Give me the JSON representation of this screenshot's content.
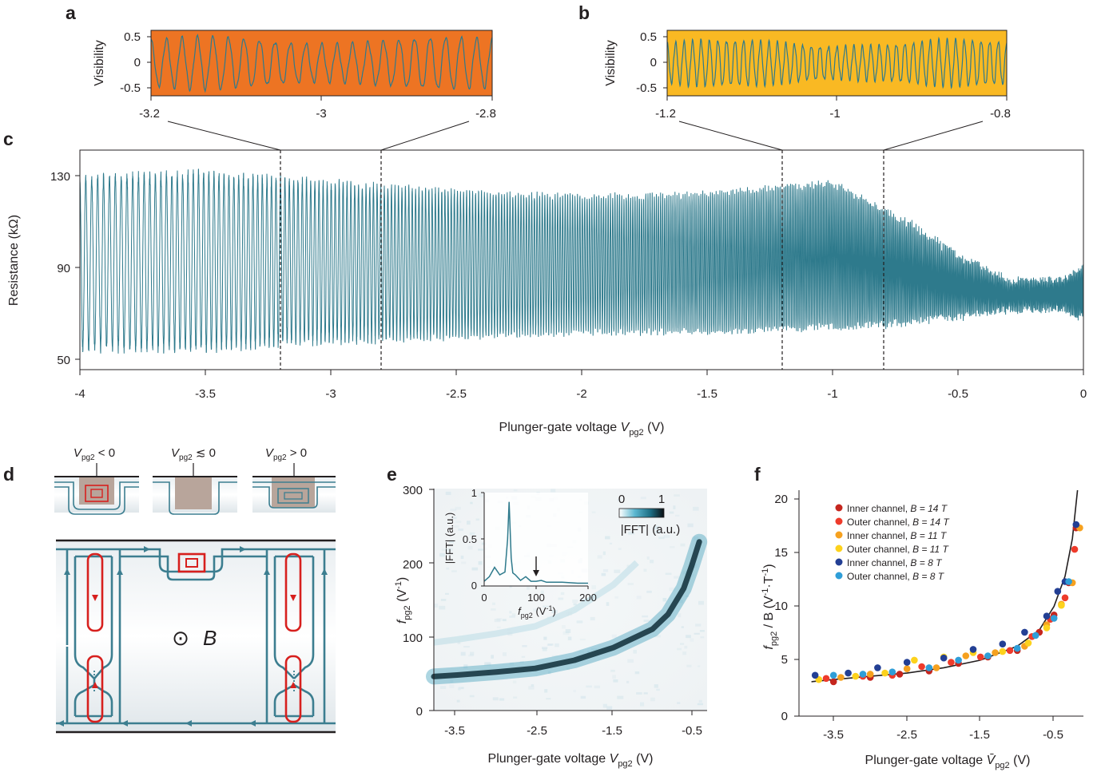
{
  "panels": {
    "a": "a",
    "b": "b",
    "c": "c",
    "d": "d",
    "e": "e",
    "f": "f"
  },
  "colors": {
    "trace": "#2e7a8c",
    "panel_a_bg": "#ed7423",
    "panel_b_bg": "#f9b923",
    "red_channel": "#d7201e",
    "channel": "#3c7e90"
  },
  "panel_a": {
    "ylabel": "Visibility",
    "yticks": [
      "0.5",
      "0",
      "-0.5"
    ],
    "xticks": [
      "-3.2",
      "-3",
      "-2.8"
    ]
  },
  "panel_b": {
    "ylabel": "Visibility",
    "yticks": [
      "0.5",
      "0",
      "-0.5"
    ],
    "xticks": [
      "-1.2",
      "-1",
      "-0.8"
    ]
  },
  "panel_c": {
    "ylabel": "Resistance (kΩ)",
    "yticks": [
      "130",
      "90",
      "50"
    ],
    "xticks": [
      "-4",
      "-3.5",
      "-3",
      "-2.5",
      "-2",
      "-1.5",
      "-1",
      "-0.5",
      "0"
    ],
    "xlabel_main": "Plunger-gate voltage ",
    "xlabel_var": "V",
    "xlabel_sub": "pg2",
    "xlabel_unit": " (V)"
  },
  "panel_d": {
    "top_labels": [
      {
        "var": "V",
        "sub": "pg2",
        "rel": " < 0"
      },
      {
        "var": "V",
        "sub": "pg2",
        "rel": " ≲ 0"
      },
      {
        "var": "V",
        "sub": "pg2",
        "rel": " > 0"
      }
    ],
    "field_label": "B",
    "field_symbol": "⊙"
  },
  "panel_e": {
    "ylabel_var": "f",
    "ylabel_sub": "pg2",
    "ylabel_unit": " (V",
    "ylabel_exp": "-1",
    "ylabel_close": ")",
    "yticks": [
      "300",
      "200",
      "100",
      "0"
    ],
    "xticks": [
      "-3.5",
      "-2.5",
      "-1.5",
      "-0.5"
    ],
    "xlabel_main": "Plunger-gate voltage ",
    "xlabel_var": "V",
    "xlabel_sub": "pg2",
    "xlabel_unit": " (V)",
    "colorbar_ticks": [
      "0",
      "1"
    ],
    "colorbar_label": "|FFT| (a.u.)",
    "inset": {
      "ylabel": "|FFT| (a.u.)",
      "yticks": [
        "1",
        "0.5",
        "0"
      ],
      "xticks": [
        "0",
        "100",
        "200"
      ],
      "xlabel_var": "f",
      "xlabel_sub": "pg2",
      "xlabel_unit": " (V",
      "xlabel_exp": "-1",
      "xlabel_close": ")"
    }
  },
  "panel_f": {
    "ylabel_var": "f",
    "ylabel_sub": "pg2",
    "ylabel_mid": " / B (V",
    "ylabel_exp1": "-1",
    "ylabel_dot": "·T",
    "ylabel_exp2": "-1",
    "ylabel_close": ")",
    "yticks": [
      "20",
      "15",
      "10",
      "5",
      "0"
    ],
    "xticks": [
      "-3.5",
      "-2.5",
      "-1.5",
      "-0.5"
    ],
    "xlabel_main": "Plunger-gate voltage ",
    "xlabel_var": "V̄",
    "xlabel_sub": "pg2",
    "xlabel_unit": " (V)",
    "legend": [
      {
        "name": "Inner channel, ",
        "field": "B = 14 T",
        "color": "#c5261e"
      },
      {
        "name": "Outer channel, ",
        "field": "B = 14 T",
        "color": "#ee3b2b"
      },
      {
        "name": "Inner channel, ",
        "field": "B = 11 T",
        "color": "#f6a11f"
      },
      {
        "name": "Outer channel, ",
        "field": "B = 11 T",
        "color": "#fdd21c"
      },
      {
        "name": "Inner channel, ",
        "field": "B = 8 T",
        "color": "#233f94"
      },
      {
        "name": "Outer channel, ",
        "field": "B = 8 T",
        "color": "#2f9ed8"
      }
    ]
  },
  "chart_data": [
    {
      "type": "line",
      "panel": "a",
      "ylabel": "Visibility",
      "xlim": [
        -3.2,
        -2.8
      ],
      "ylim": [
        -0.6,
        0.6
      ],
      "oscillations": 22,
      "amplitude": 0.45
    },
    {
      "type": "line",
      "panel": "b",
      "ylabel": "Visibility",
      "xlim": [
        -1.2,
        -0.8
      ],
      "ylim": [
        -0.6,
        0.6
      ],
      "oscillations": 40,
      "amplitude": 0.4
    },
    {
      "type": "line",
      "panel": "c",
      "xlabel": "Plunger-gate voltage Vpg2 (V)",
      "ylabel": "Resistance (kΩ)",
      "xlim": [
        -4,
        0
      ],
      "ylim": [
        46,
        140
      ],
      "envelope": {
        "x": [
          -4.0,
          -3.5,
          -3.0,
          -2.5,
          -2.0,
          -1.5,
          -1.0,
          -0.75,
          -0.5,
          -0.3,
          -0.1,
          0.0
        ],
        "max": [
          128,
          130,
          126,
          122,
          120,
          121,
          126,
          112,
          95,
          84,
          84,
          90
        ],
        "min": [
          55,
          55,
          58,
          60,
          62,
          62,
          64,
          66,
          69,
          72,
          72,
          68
        ]
      },
      "oscillation_frequency_start": 42,
      "oscillation_frequency_end": 230,
      "dashed_markers_x": [
        -3.2,
        -2.8,
        -1.2,
        -0.8
      ]
    },
    {
      "type": "heatmap",
      "panel": "e",
      "xlabel": "Plunger-gate voltage Vpg2 (V)",
      "ylabel": "fpg2 (V-1)",
      "xlim": [
        -3.8,
        -0.3
      ],
      "ylim": [
        0,
        300
      ],
      "ridge": {
        "x": [
          -3.8,
          -3.5,
          -3.0,
          -2.5,
          -2.0,
          -1.5,
          -1.2,
          -1.0,
          -0.8,
          -0.6,
          -0.5,
          -0.4
        ],
        "f": [
          46,
          48,
          52,
          57,
          68,
          85,
          100,
          110,
          130,
          165,
          195,
          228
        ]
      },
      "colorbar": {
        "min": 0,
        "max": 1,
        "label": "|FFT| (a.u.)"
      }
    },
    {
      "type": "line",
      "panel": "e-inset",
      "xlabel": "fpg2 (V-1)",
      "ylabel": "|FFT| (a.u.)",
      "xlim": [
        0,
        200
      ],
      "ylim": [
        0,
        1
      ],
      "x": [
        0,
        10,
        20,
        30,
        40,
        45,
        48,
        50,
        52,
        55,
        60,
        70,
        80,
        90,
        100,
        110,
        120,
        150,
        180,
        200
      ],
      "y": [
        0.05,
        0.1,
        0.2,
        0.12,
        0.15,
        0.5,
        0.9,
        0.6,
        0.3,
        0.14,
        0.12,
        0.06,
        0.1,
        0.05,
        0.05,
        0.06,
        0.04,
        0.04,
        0.03,
        0.03
      ],
      "arrow_at_x": 100
    },
    {
      "type": "scatter",
      "panel": "f",
      "xlabel": "Plunger-gate voltage V̄pg2 (V)",
      "ylabel": "fpg2 / B (V-1·T-1)",
      "xlim": [
        -3.8,
        0
      ],
      "ylim": [
        0,
        21
      ],
      "fit": {
        "x": [
          -3.8,
          -3.5,
          -3.0,
          -2.5,
          -2.0,
          -1.5,
          -1.0,
          -0.7,
          -0.5,
          -0.35,
          -0.25,
          -0.18
        ],
        "y": [
          3.2,
          3.4,
          3.7,
          4.0,
          4.5,
          5.2,
          6.5,
          8.0,
          10.2,
          13.0,
          16.5,
          21.0
        ]
      },
      "series": [
        {
          "name": "Inner channel, B = 14 T",
          "x": [
            -3.5,
            -3.0,
            -2.6,
            -2.2,
            -1.8,
            -1.4,
            -1.0,
            -0.7,
            -0.5,
            -0.3,
            -0.2
          ],
          "y": [
            3.2,
            3.6,
            3.9,
            4.2,
            4.9,
            5.5,
            6.1,
            7.8,
            9.4,
            12.4,
            17.5
          ]
        },
        {
          "name": "Outer channel, B = 14 T",
          "x": [
            -3.6,
            -3.1,
            -2.7,
            -2.3,
            -1.9,
            -1.5,
            -1.1,
            -0.8,
            -0.55,
            -0.35,
            -0.22
          ],
          "y": [
            3.5,
            3.7,
            3.8,
            4.6,
            5.0,
            5.5,
            6.1,
            7.4,
            9.0,
            11.0,
            15.5
          ]
        },
        {
          "name": "Inner channel, B = 11 T",
          "x": [
            -3.4,
            -3.0,
            -2.5,
            -2.1,
            -1.7,
            -1.3,
            -0.9,
            -0.6,
            -0.4,
            -0.25,
            -0.15
          ],
          "y": [
            3.6,
            3.9,
            4.4,
            4.5,
            5.6,
            5.9,
            6.5,
            8.5,
            10.4,
            12.4,
            17.5
          ]
        },
        {
          "name": "Outer channel, B = 11 T",
          "x": [
            -3.7,
            -3.2,
            -2.8,
            -2.4,
            -2.0,
            -1.6,
            -1.2,
            -0.85,
            -0.6,
            -0.4
          ],
          "y": [
            3.4,
            3.7,
            4.0,
            5.2,
            5.5,
            5.9,
            6.0,
            6.8,
            8.2,
            10.3
          ]
        },
        {
          "name": "Inner channel, B = 8 T",
          "x": [
            -3.75,
            -3.3,
            -2.9,
            -2.5,
            -2.0,
            -1.6,
            -1.2,
            -0.9,
            -0.6,
            -0.45,
            -0.35,
            -0.2
          ],
          "y": [
            3.8,
            4.0,
            4.5,
            5.0,
            5.4,
            6.2,
            6.7,
            7.8,
            9.3,
            11.6,
            12.5,
            17.8
          ]
        },
        {
          "name": "Outer channel, B = 8 T",
          "x": [
            -3.5,
            -3.1,
            -2.7,
            -2.2,
            -1.8,
            -1.4,
            -1.0,
            -0.75,
            -0.5,
            -0.3
          ],
          "y": [
            3.8,
            3.9,
            4.1,
            4.5,
            5.2,
            5.6,
            6.3,
            7.5,
            9.1,
            12.5
          ]
        }
      ]
    }
  ]
}
